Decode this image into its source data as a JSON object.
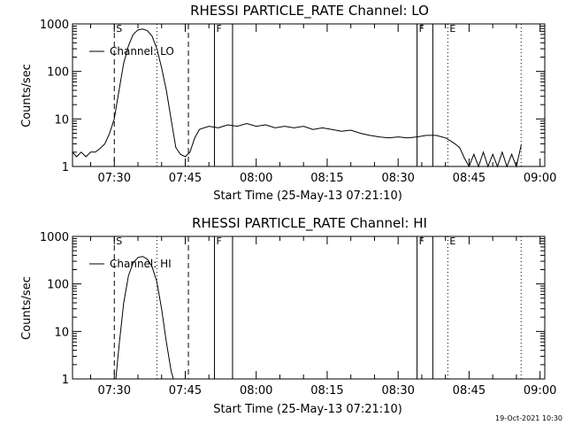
{
  "footer": {
    "date_stamp": "19-Oct-2021 10:30"
  },
  "chart_data": [
    {
      "type": "line",
      "title": "RHESSI PARTICLE_RATE Channel: LO",
      "xlabel": "Start Time (25-May-13 07:21:10)",
      "ylabel": "Counts/sec",
      "xlim": [
        "07:21:10",
        "09:01:00"
      ],
      "ylim": [
        1,
        1000
      ],
      "yscale": "log",
      "grid": false,
      "legend": {
        "position": "top-left",
        "entries": [
          "Channel: LO"
        ]
      },
      "x_ticks": [
        "07:30",
        "07:45",
        "08:00",
        "08:15",
        "08:30",
        "08:45",
        "09:00"
      ],
      "y_ticks": [
        "1",
        "10",
        "100",
        "1000"
      ],
      "markers": [
        {
          "time": "07:30:00",
          "label": "S",
          "style": "dashed"
        },
        {
          "time": "07:39:00",
          "label": "",
          "style": "dotted"
        },
        {
          "time": "07:45:40",
          "label": "",
          "style": "dashed"
        },
        {
          "time": "07:51:10",
          "label": "F",
          "style": "solid"
        },
        {
          "time": "07:55:00",
          "label": "",
          "style": "solid"
        },
        {
          "time": "08:34:00",
          "label": "F",
          "style": "solid"
        },
        {
          "time": "08:37:20",
          "label": "",
          "style": "solid"
        },
        {
          "time": "08:40:30",
          "label": "E",
          "style": "dotted"
        },
        {
          "time": "08:56:00",
          "label": "",
          "style": "dotted"
        }
      ],
      "series": [
        {
          "name": "Channel: LO",
          "points": [
            [
              "07:21:10",
              2
            ],
            [
              "07:22:00",
              1.6
            ],
            [
              "07:23:00",
              2
            ],
            [
              "07:24:00",
              1.6
            ],
            [
              "07:25:00",
              2
            ],
            [
              "07:26:00",
              2
            ],
            [
              "07:27:00",
              2.4
            ],
            [
              "07:28:00",
              3
            ],
            [
              "07:29:00",
              5
            ],
            [
              "07:30:00",
              10
            ],
            [
              "07:31:00",
              40
            ],
            [
              "07:32:00",
              150
            ],
            [
              "07:33:00",
              350
            ],
            [
              "07:34:00",
              600
            ],
            [
              "07:35:00",
              750
            ],
            [
              "07:36:00",
              780
            ],
            [
              "07:37:00",
              720
            ],
            [
              "07:38:00",
              550
            ],
            [
              "07:39:00",
              300
            ],
            [
              "07:40:00",
              120
            ],
            [
              "07:41:00",
              40
            ],
            [
              "07:42:00",
              10
            ],
            [
              "07:43:00",
              2.5
            ],
            [
              "07:44:00",
              1.8
            ],
            [
              "07:45:00",
              1.6
            ],
            [
              "07:46:00",
              2
            ],
            [
              "07:47:00",
              4
            ],
            [
              "07:48:00",
              6
            ],
            [
              "07:50:00",
              7
            ],
            [
              "07:52:00",
              6.5
            ],
            [
              "07:54:00",
              7.5
            ],
            [
              "07:56:00",
              7
            ],
            [
              "07:58:00",
              8
            ],
            [
              "08:00:00",
              7
            ],
            [
              "08:02:00",
              7.5
            ],
            [
              "08:04:00",
              6.5
            ],
            [
              "08:06:00",
              7
            ],
            [
              "08:08:00",
              6.5
            ],
            [
              "08:10:00",
              7
            ],
            [
              "08:12:00",
              6
            ],
            [
              "08:14:00",
              6.5
            ],
            [
              "08:16:00",
              6
            ],
            [
              "08:18:00",
              5.5
            ],
            [
              "08:20:00",
              5.8
            ],
            [
              "08:22:00",
              5
            ],
            [
              "08:24:00",
              4.5
            ],
            [
              "08:26:00",
              4.2
            ],
            [
              "08:28:00",
              4
            ],
            [
              "08:30:00",
              4.2
            ],
            [
              "08:32:00",
              4
            ],
            [
              "08:34:00",
              4.2
            ],
            [
              "08:36:00",
              4.5
            ],
            [
              "08:38:00",
              4.5
            ],
            [
              "08:40:00",
              4
            ],
            [
              "08:41:00",
              3.5
            ],
            [
              "08:42:00",
              3
            ],
            [
              "08:43:00",
              2.5
            ],
            [
              "08:44:00",
              1.5
            ],
            [
              "08:45:00",
              1
            ],
            [
              "08:46:00",
              1.8
            ],
            [
              "08:47:00",
              1
            ],
            [
              "08:48:00",
              2
            ],
            [
              "08:49:00",
              1
            ],
            [
              "08:50:00",
              1.8
            ],
            [
              "08:51:00",
              1
            ],
            [
              "08:52:00",
              2
            ],
            [
              "08:53:00",
              1
            ],
            [
              "08:54:00",
              1.8
            ],
            [
              "08:55:00",
              1
            ],
            [
              "08:56:00",
              2.8
            ]
          ]
        }
      ]
    },
    {
      "type": "line",
      "title": "RHESSI PARTICLE_RATE Channel: HI",
      "xlabel": "Start Time (25-May-13 07:21:10)",
      "ylabel": "Counts/sec",
      "xlim": [
        "07:21:10",
        "09:01:00"
      ],
      "ylim": [
        1,
        1000
      ],
      "yscale": "log",
      "grid": false,
      "legend": {
        "position": "top-left",
        "entries": [
          "Channel: HI"
        ]
      },
      "x_ticks": [
        "07:30",
        "07:45",
        "08:00",
        "08:15",
        "08:30",
        "08:45",
        "09:00"
      ],
      "y_ticks": [
        "1",
        "10",
        "100",
        "1000"
      ],
      "markers": [
        {
          "time": "07:30:00",
          "label": "S",
          "style": "dashed"
        },
        {
          "time": "07:39:00",
          "label": "",
          "style": "dotted"
        },
        {
          "time": "07:45:40",
          "label": "",
          "style": "dashed"
        },
        {
          "time": "07:51:10",
          "label": "F",
          "style": "solid"
        },
        {
          "time": "07:55:00",
          "label": "",
          "style": "solid"
        },
        {
          "time": "08:34:00",
          "label": "F",
          "style": "solid"
        },
        {
          "time": "08:37:20",
          "label": "",
          "style": "solid"
        },
        {
          "time": "08:40:30",
          "label": "E",
          "style": "dotted"
        },
        {
          "time": "08:56:00",
          "label": "",
          "style": "dotted"
        }
      ],
      "series": [
        {
          "name": "Channel: HI",
          "points": [
            [
              "07:30:20",
              1
            ],
            [
              "07:31:00",
              5
            ],
            [
              "07:32:00",
              40
            ],
            [
              "07:33:00",
              150
            ],
            [
              "07:34:00",
              280
            ],
            [
              "07:35:00",
              360
            ],
            [
              "07:36:00",
              380
            ],
            [
              "07:37:00",
              330
            ],
            [
              "07:38:00",
              230
            ],
            [
              "07:39:00",
              110
            ],
            [
              "07:40:00",
              30
            ],
            [
              "07:41:00",
              6
            ],
            [
              "07:42:00",
              1.5
            ],
            [
              "07:42:30",
              1
            ]
          ]
        }
      ]
    }
  ]
}
